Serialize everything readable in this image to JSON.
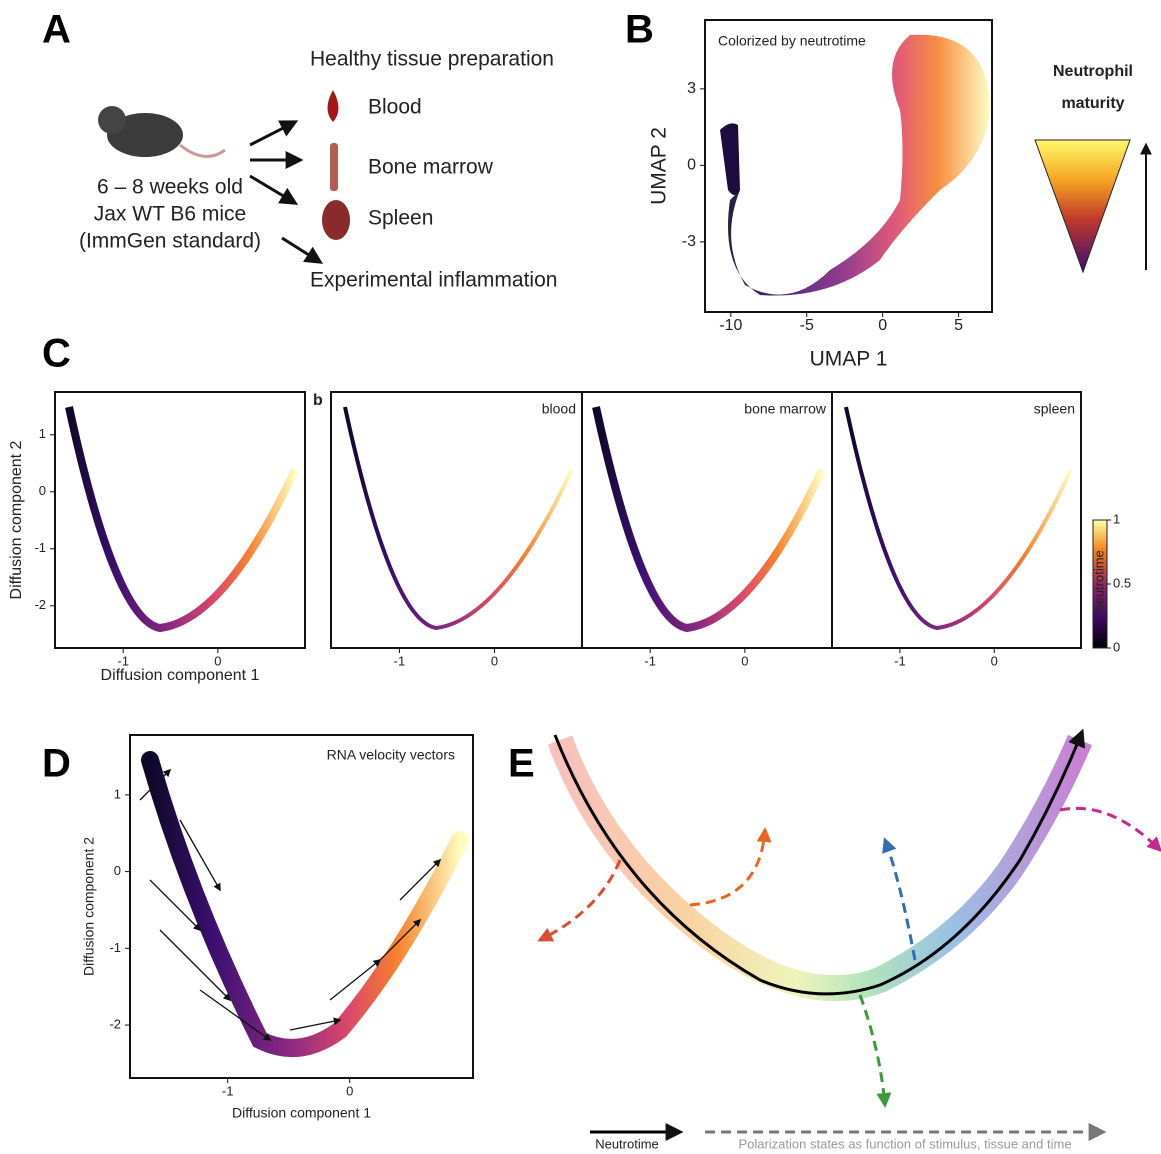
{
  "panels": {
    "A": {
      "label": "A",
      "title": "Healthy tissue preparation",
      "items": [
        "Blood",
        "Bone marrow",
        "Spleen"
      ],
      "mouse_text": [
        "6 – 8 weeks old",
        "Jax WT B6 mice",
        "(ImmGen standard)"
      ],
      "footer": "Experimental inflammation"
    },
    "B": {
      "label": "B",
      "annotation": "Colorized by neutrotime",
      "x_label": "UMAP 1",
      "y_label": "UMAP 2",
      "xlim": [
        -11.7,
        7.2
      ],
      "ylim": [
        -5.75,
        5.7
      ],
      "xticks": [
        -10,
        -5,
        0,
        5
      ],
      "yticks": [
        -3,
        0,
        3
      ],
      "legend_title": [
        "Neutrophil",
        "maturity"
      ]
    },
    "C": {
      "label": "C",
      "sublabel": "b",
      "x_label": "Diffusion component 1",
      "y_label": "Diffusion component 2",
      "xlim": [
        -1.72,
        0.92
      ],
      "ylim": [
        -2.74,
        1.75
      ],
      "xticks": [
        -1,
        0
      ],
      "yticks": [
        -2,
        -1,
        0,
        1
      ],
      "facets": [
        "blood",
        "bone marrow",
        "spleen"
      ],
      "colorbar_title": "Neutrotime",
      "colorbar_lim": [
        0,
        1
      ],
      "colorbar_ticks": [
        0,
        0.5,
        1
      ]
    },
    "D": {
      "label": "D",
      "annotation": "RNA velocity vectors",
      "x_label": "Diffusion component 1",
      "y_label": "Diffusion component 2",
      "xlim": [
        -1.8,
        1.01
      ],
      "ylim": [
        -2.69,
        1.78
      ],
      "xticks": [
        -1,
        0
      ],
      "yticks": [
        -2,
        -1,
        0,
        1
      ]
    },
    "E": {
      "label": "E",
      "legend": [
        "Neutrotime",
        "Polarization states as function of stimulus, tissue and time"
      ]
    }
  }
}
